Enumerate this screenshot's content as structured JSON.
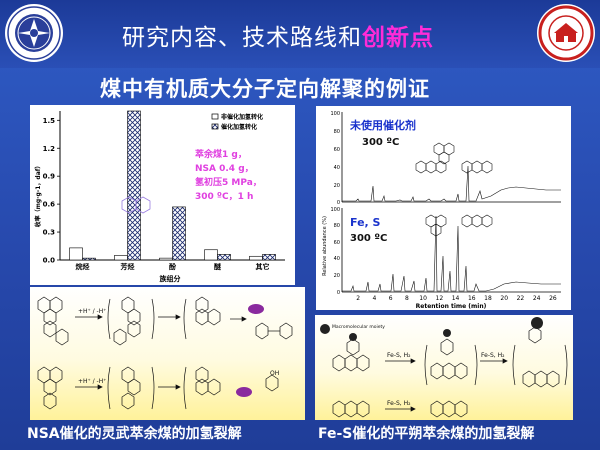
{
  "header": {
    "title_main": "研究内容、技术路线和",
    "title_highlight": "创新点",
    "subtitle": "煤中有机质大分子定向解聚的例证"
  },
  "chart_data": [
    {
      "type": "bar",
      "categories": [
        "烷烃",
        "芳烃",
        "酚",
        "醚",
        "其它"
      ],
      "series": [
        {
          "name": "非催化加氢转化",
          "values": [
            0.13,
            0.05,
            0.02,
            0.11,
            0.04
          ]
        },
        {
          "name": "催化加氢转化",
          "values": [
            0.02,
            1.6,
            0.57,
            0.06,
            0.06
          ]
        }
      ],
      "xlabel": "族组分",
      "ylabel": "收率（mg·g-1，daf）",
      "yticks": [
        "0.0",
        "0.3",
        "0.6",
        "0.9",
        "1.2",
        "1.5"
      ],
      "ylim": [
        0,
        1.6
      ],
      "annotation": [
        "萃余煤1 g，",
        "NSA 0.4 g，",
        "氢初压5 MPa，",
        "300 ºC，1 h"
      ]
    },
    {
      "type": "line",
      "xlabel": "Retention time (min)",
      "ylabel": "Relative abundance (%)",
      "xticks": [
        "2",
        "4",
        "6",
        "8",
        "10",
        "12",
        "14",
        "16",
        "18",
        "20",
        "22",
        "24",
        "26"
      ],
      "yticks": [
        "0",
        "20",
        "40",
        "60",
        "80",
        "100"
      ],
      "panels": [
        {
          "label": "未使用催化剂",
          "temp": "300 ºC"
        },
        {
          "label": "Fe, S",
          "temp": "300 ºC"
        }
      ]
    }
  ],
  "reactions": {
    "left_reagent": "+H⁺ / -H⁺",
    "right_label": "Macromolecular moiety",
    "right_reagent_1": "Fe-S, H₂",
    "right_reagent_2": "Fe-S, H₂",
    "right_reagent_3": "Fe-S, H₂"
  },
  "captions": {
    "left": "NSA催化的灵武萃余煤的加氢裂解",
    "right": "Fe-S催化的平朔萃余煤的加氢裂解"
  },
  "colors": {
    "background": "#2a4fb0",
    "title_highlight": "#ff2bd8",
    "annotation_magenta": "#e040e0",
    "panel_label_blue": "#1a33cc"
  }
}
